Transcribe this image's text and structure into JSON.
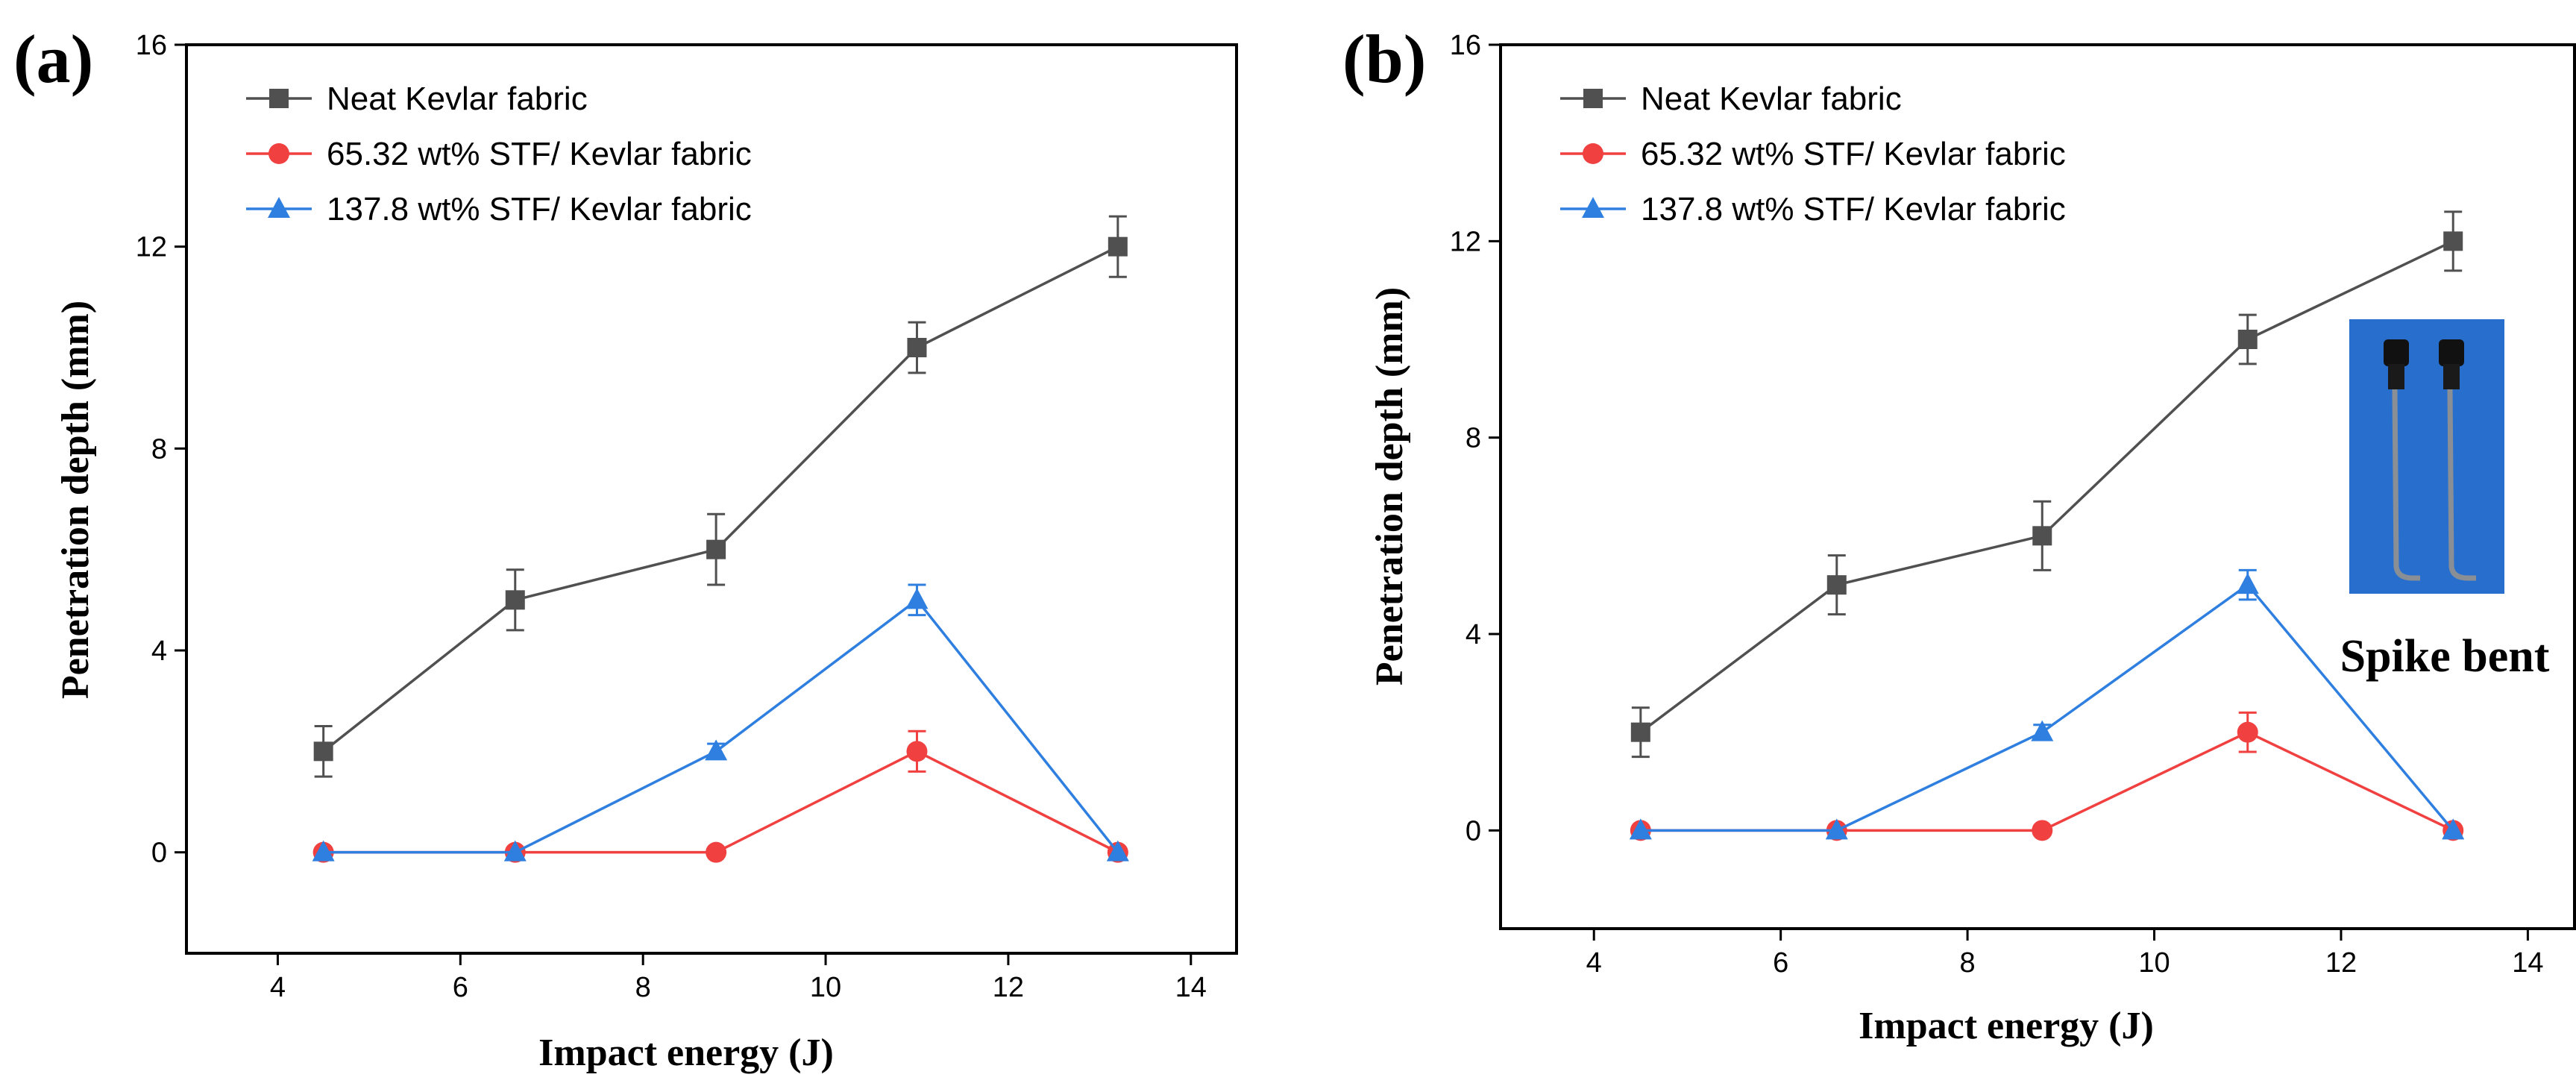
{
  "chart_data": [
    {
      "type": "line",
      "panel_label": "(a)",
      "xlabel": "Impact energy (J)",
      "ylabel": "Penetration depth (mm)",
      "xlim": [
        3,
        14.5
      ],
      "ylim": [
        -2,
        16
      ],
      "xticks": [
        4,
        6,
        8,
        10,
        12,
        14
      ],
      "yticks": [
        0,
        4,
        8,
        12,
        16
      ],
      "legend_position": "top-left",
      "series": [
        {
          "name": "Neat Kevlar fabric",
          "color": "#505050",
          "marker": "square",
          "x": [
            4.5,
            6.6,
            8.8,
            11.0,
            13.2
          ],
          "y": [
            2,
            5,
            6,
            10,
            12
          ],
          "err": [
            0.5,
            0.6,
            0.7,
            0.5,
            0.6
          ]
        },
        {
          "name": "65.32 wt% STF/ Kevlar fabric",
          "color": "#f04040",
          "marker": "circle",
          "x": [
            4.5,
            6.6,
            8.8,
            11.0,
            13.2
          ],
          "y": [
            0,
            0,
            0,
            2,
            0
          ],
          "err": [
            0,
            0,
            0,
            0.4,
            0
          ]
        },
        {
          "name": "137.8 wt% STF/ Kevlar fabric",
          "color": "#2f7fe0",
          "marker": "triangle",
          "x": [
            4.5,
            6.6,
            8.8,
            11.0,
            13.2
          ],
          "y": [
            0,
            0,
            2,
            5,
            0
          ],
          "err": [
            0,
            0,
            0.15,
            0.3,
            0
          ]
        }
      ]
    },
    {
      "type": "line",
      "panel_label": "(b)",
      "xlabel": "Impact energy (J)",
      "ylabel": "Penetration depth (mm)",
      "xlim": [
        3,
        14.5
      ],
      "ylim": [
        -2,
        16
      ],
      "xticks": [
        4,
        6,
        8,
        10,
        12,
        14
      ],
      "yticks": [
        0,
        4,
        8,
        12,
        16
      ],
      "legend_position": "top-left",
      "annotation": "Spike bent",
      "inset_image": "photo of two bent spikes on blue background",
      "series": [
        {
          "name": "Neat Kevlar fabric",
          "color": "#505050",
          "marker": "square",
          "x": [
            4.5,
            6.6,
            8.8,
            11.0,
            13.2
          ],
          "y": [
            2,
            5,
            6,
            10,
            12
          ],
          "err": [
            0.5,
            0.6,
            0.7,
            0.5,
            0.6
          ]
        },
        {
          "name": "65.32 wt% STF/ Kevlar fabric",
          "color": "#f04040",
          "marker": "circle",
          "x": [
            4.5,
            6.6,
            8.8,
            11.0,
            13.2
          ],
          "y": [
            0,
            0,
            0,
            2,
            0
          ],
          "err": [
            0,
            0,
            0,
            0.4,
            0
          ]
        },
        {
          "name": "137.8 wt% STF/ Kevlar fabric",
          "color": "#2f7fe0",
          "marker": "triangle",
          "x": [
            4.5,
            6.6,
            8.8,
            11.0,
            13.2
          ],
          "y": [
            0,
            0,
            2,
            5,
            0
          ],
          "err": [
            0,
            0,
            0.15,
            0.3,
            0
          ]
        }
      ]
    }
  ]
}
